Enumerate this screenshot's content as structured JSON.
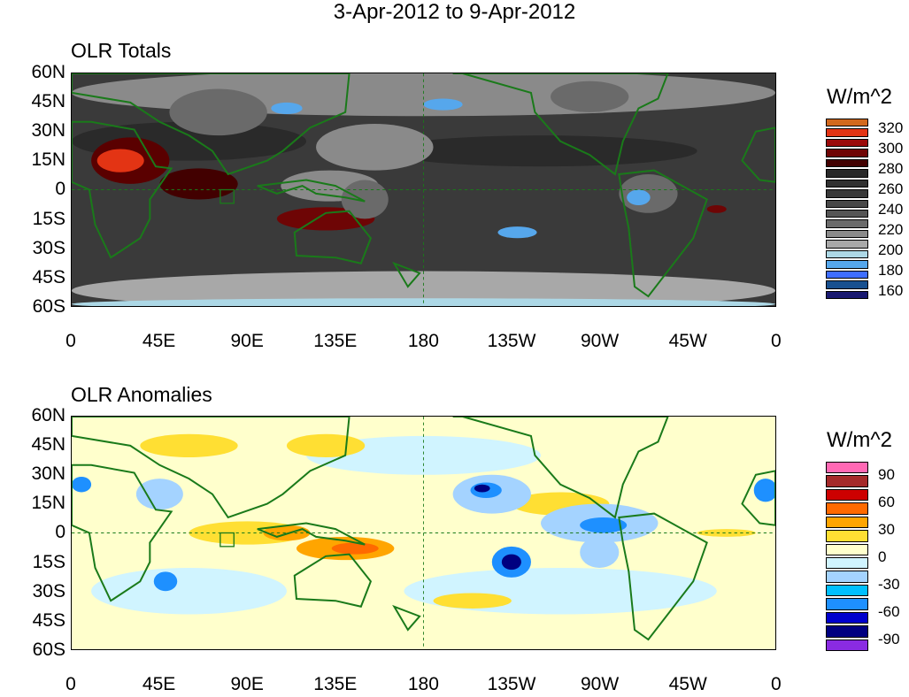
{
  "title": "3-Apr-2012 to 9-Apr-2012",
  "panels": [
    {
      "title": "OLR Totals",
      "units": "W/m^2",
      "colorbar": {
        "labels": [
          "320",
          "300",
          "280",
          "260",
          "240",
          "220",
          "200",
          "180",
          "160"
        ],
        "colors": [
          "#d2691e",
          "#e33414",
          "#9a0a0a",
          "#6e0505",
          "#420000",
          "#282828",
          "#303030",
          "#383838",
          "#484848",
          "#555555",
          "#6a6a6a",
          "#8a8a8a",
          "#a8a8a8",
          "#add8e6",
          "#56a7ec",
          "#3f6eff",
          "#18508f",
          "#191970"
        ]
      }
    },
    {
      "title": "OLR Anomalies",
      "units": "W/m^2",
      "colorbar": {
        "labels": [
          "90",
          "60",
          "30",
          "0",
          "-30",
          "-60",
          "-90"
        ],
        "colors": [
          "#ff69b4",
          "#a52a2a",
          "#cd0000",
          "#ff6a00",
          "#ffa500",
          "#ffdf33",
          "#ffffcc",
          "#d0f4ff",
          "#a4d3ff",
          "#00bfff",
          "#1e90ff",
          "#0000cd",
          "#000080",
          "#8a2be2"
        ]
      }
    }
  ],
  "axes": {
    "lat_labels": [
      "60N",
      "45N",
      "30N",
      "15N",
      "0",
      "15S",
      "30S",
      "45S",
      "60S"
    ],
    "lon_labels": [
      "0",
      "45E",
      "90E",
      "135E",
      "180",
      "135W",
      "90W",
      "45W",
      "0"
    ]
  }
}
